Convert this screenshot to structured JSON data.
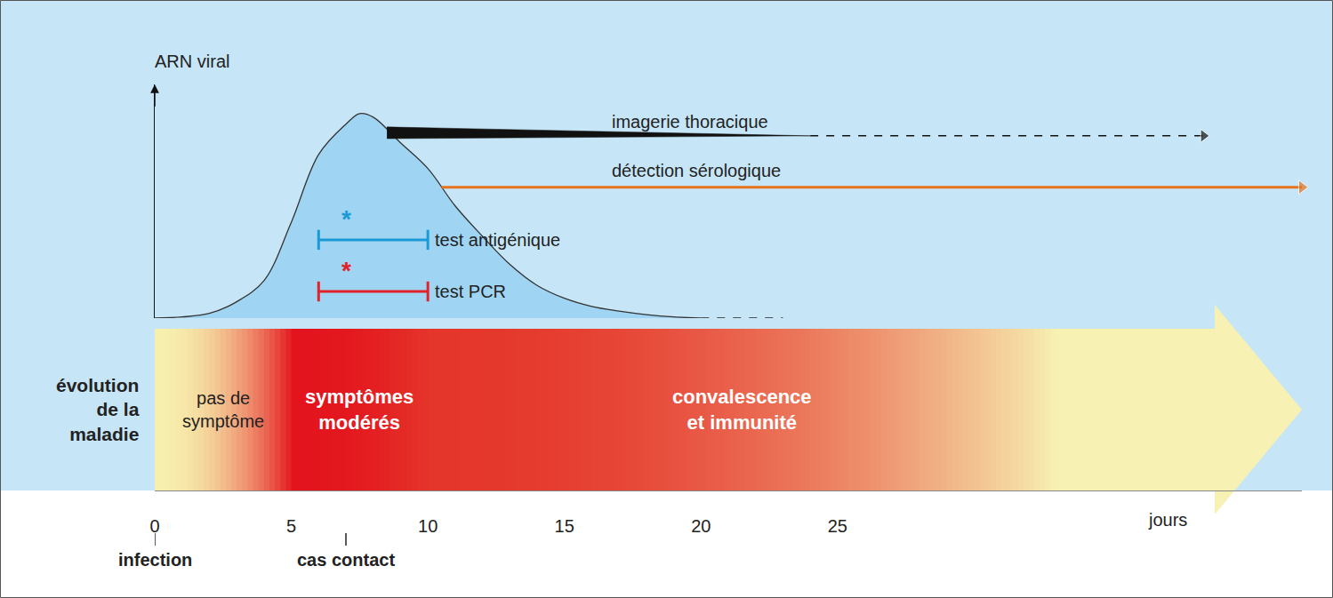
{
  "chart_data": {
    "type": "area",
    "y_label": "ARN viral",
    "x_label": "jours",
    "xlim": [
      0,
      42
    ],
    "xticks": [
      0,
      5,
      10,
      15,
      20,
      25
    ],
    "ylim": [
      0,
      100
    ],
    "tick_labels": "x",
    "series": [
      {
        "type": "area",
        "color": "#9fd5f3",
        "line_style": "solid",
        "x": [
          0,
          1,
          2,
          3,
          4,
          5,
          6,
          7,
          7.5,
          8,
          9,
          10,
          11,
          12,
          13,
          14,
          15,
          16,
          17,
          18,
          19,
          20
        ],
        "values": [
          0,
          0.5,
          2,
          7,
          16,
          41,
          70,
          83,
          87.5,
          86,
          75,
          64,
          48,
          35,
          23,
          14,
          8.5,
          5,
          3,
          1.5,
          0.5,
          0
        ]
      },
      {
        "type": "line",
        "color": "#222222",
        "line_style": "dashed",
        "x": [
          20,
          23
        ],
        "values": [
          0,
          0
        ]
      }
    ],
    "tests": [
      {
        "label": "test antigénique",
        "start": 6,
        "end": 10,
        "level": 33.5,
        "color": "#1b9ad6",
        "flag": "*",
        "flag_x": 7
      },
      {
        "label": "test PCR",
        "start": 6,
        "end": 10,
        "level": 11.4,
        "color": "#e2222b",
        "flag": "*",
        "flag_x": 7
      }
    ],
    "imaging": {
      "label": "imagerie thoracique",
      "start": 8.5,
      "solid_end": 24,
      "end": 38.4,
      "level": 78,
      "color": "#111111"
    },
    "serology": {
      "label": "détection sérologique",
      "start": 10.5,
      "end": 42,
      "level": 56,
      "color": "#e8731e"
    },
    "events": [
      {
        "x": 0,
        "label": "infection"
      },
      {
        "x": 7,
        "label": "cas contact"
      }
    ],
    "disease": {
      "label": [
        "évolution",
        "de la",
        "maladie"
      ],
      "phases": [
        {
          "label": [
            "pas de",
            "symptôme"
          ],
          "start": 0,
          "end": 5,
          "color": "#f7efad"
        },
        {
          "label": [
            "symptômes",
            "modérés"
          ],
          "start": 5,
          "end": 10,
          "color": "#e3141d"
        },
        {
          "label": [
            "convalescence",
            "et immunité"
          ],
          "start": 10,
          "end": 33,
          "color": "#e5362b"
        },
        {
          "start": 33,
          "end": 42,
          "color": "#f7f1b3"
        }
      ]
    }
  }
}
